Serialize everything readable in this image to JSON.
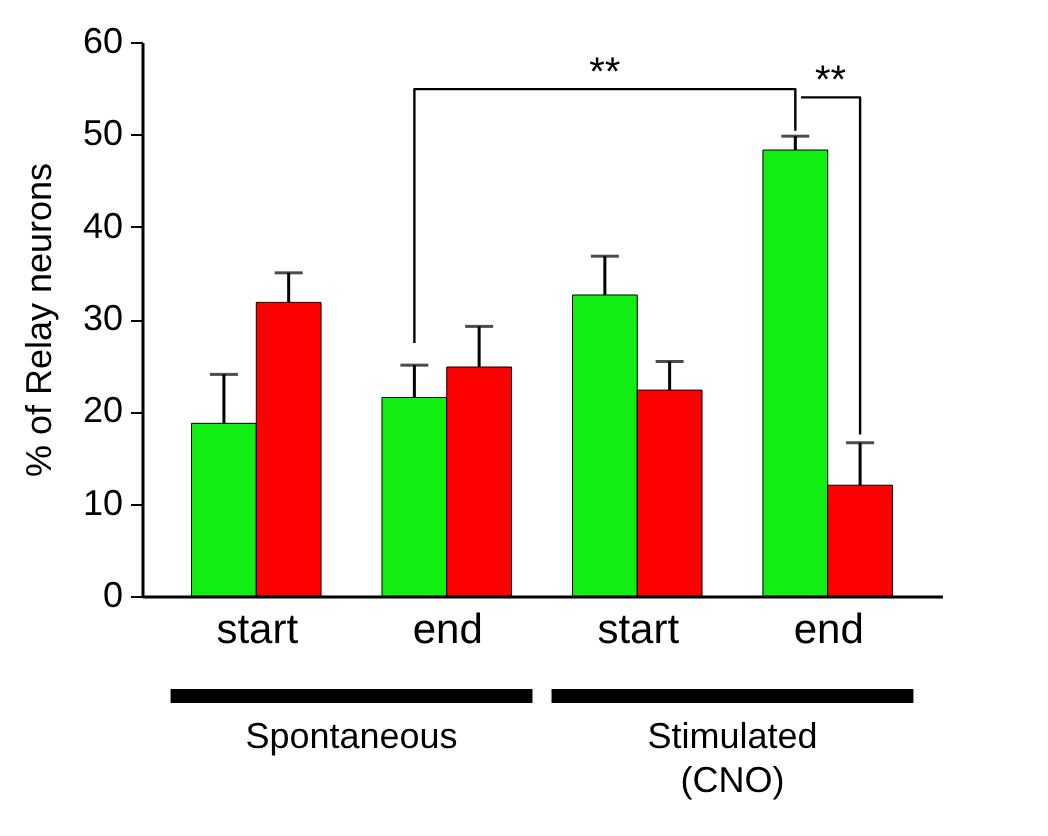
{
  "chart_data": {
    "type": "bar",
    "ylabel": "% of Relay neurons",
    "categories": [
      "start",
      "end",
      "start",
      "end"
    ],
    "series": [
      {
        "color": "#11ee11",
        "values": [
          18.7,
          21.5,
          32.6,
          48.3
        ],
        "errors": [
          [
            18.7,
            24
          ],
          [
            21.5,
            25
          ],
          [
            32.6,
            36.8
          ],
          [
            48.3,
            49.8
          ]
        ]
      },
      {
        "color": "#ff0000",
        "values": [
          31.8,
          24.8,
          22.3,
          12
        ],
        "errors": [
          [
            31.8,
            35
          ],
          [
            24.8,
            29.2
          ],
          [
            22.3,
            25.4
          ],
          [
            12,
            16.6
          ]
        ]
      }
    ],
    "ylim": [
      0,
      60
    ],
    "yticks": [
      0,
      10,
      20,
      30,
      40,
      50,
      60
    ],
    "grid": false,
    "legend": false,
    "annotations": [
      "**",
      "**",
      "Spontaneous",
      "Stimulated (CNO)"
    ]
  }
}
